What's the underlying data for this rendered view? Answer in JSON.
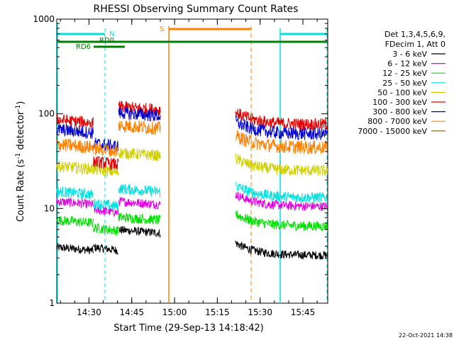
{
  "chart_data": {
    "type": "line",
    "title": "RHESSI Observing Summary Count Rates",
    "xlabel": "Start Time (29-Sep-13 14:18:42)",
    "ylabel_main": "Count Rate (s",
    "ylabel_sup1": "-1",
    "ylabel_mid": " detector",
    "ylabel_sup2": "-1",
    "ylabel_end": ")",
    "yscale": "log",
    "ylim": [
      1,
      1000
    ],
    "xlim": [
      0,
      5700
    ],
    "x_units": "seconds since 14:18:42",
    "y_ticks": [
      {
        "v": 1,
        "label": "1"
      },
      {
        "v": 10,
        "label": "10"
      },
      {
        "v": 100,
        "label": "100"
      },
      {
        "v": 1000,
        "label": "1000"
      }
    ],
    "x_ticks": [
      {
        "t": 678,
        "label": "14:30"
      },
      {
        "t": 1578,
        "label": "14:45"
      },
      {
        "t": 2478,
        "label": "15:00"
      },
      {
        "t": 3378,
        "label": "15:15"
      },
      {
        "t": 4278,
        "label": "15:30"
      },
      {
        "t": 5178,
        "label": "15:45"
      }
    ],
    "legend_header": [
      "Det 1,3,4,5,6,9,",
      "FDecim 1, Att 0"
    ],
    "series": [
      {
        "name": "3 - 6 keV",
        "color": "#000000",
        "level": [
          3.6,
          3.6,
          5.5,
          3.2
        ]
      },
      {
        "name": "6 - 12 keV",
        "color": "#e000e0",
        "level": [
          11,
          9,
          11,
          10.5
        ]
      },
      {
        "name": "12 - 25 keV",
        "color": "#00e000",
        "level": [
          7,
          5.8,
          7.5,
          6.5
        ]
      },
      {
        "name": "25 - 50 keV",
        "color": "#00e0e0",
        "level": [
          14,
          10.5,
          15,
          13
        ]
      },
      {
        "name": "50 - 100 keV",
        "color": "#d0d000",
        "level": [
          26,
          24,
          36,
          25
        ]
      },
      {
        "name": "100 - 300 keV",
        "color": "#e00000",
        "level": [
          80,
          29,
          110,
          77
        ]
      },
      {
        "name": "300 - 800 keV",
        "color": "#0000d0",
        "level": [
          63,
          45,
          95,
          61
        ]
      },
      {
        "name": "800 - 7000 keV",
        "color": "#ff8000",
        "level": [
          44,
          40,
          70,
          44
        ]
      },
      {
        "name": "7000 - 15000 keV",
        "color": "#806000",
        "level": [
          0,
          0,
          0,
          0
        ]
      }
    ],
    "segments": [
      [
        0,
        770,
        1
      ],
      [
        770,
        1300,
        2
      ],
      [
        1300,
        2180,
        3
      ],
      [
        3760,
        5700,
        4
      ]
    ],
    "annotations": {
      "saa_label": "S",
      "night_label": "N",
      "rd0_label": "RD0",
      "rd6_label": "RD6"
    },
    "timestamp": "22-Oct-2021 14:38"
  }
}
